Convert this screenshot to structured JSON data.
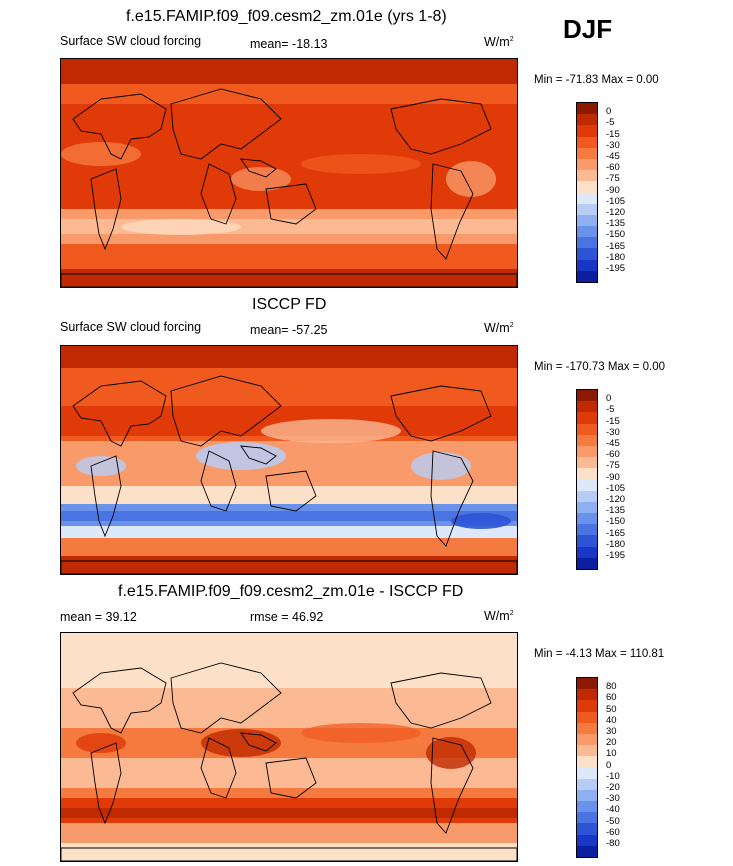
{
  "season": "DJF",
  "panels": [
    {
      "title": "f.e15.FAMIP.f09_f09.cesm2_zm.01e (yrs 1-8)",
      "left_label": "Surface SW cloud forcing",
      "center_label": "mean= -18.13",
      "units": "W/m",
      "units_sup": "2",
      "minmax": "Min = -71.83 Max =   0.00",
      "palette": "cloud"
    },
    {
      "title": "ISCCP FD",
      "left_label": "Surface SW cloud forcing",
      "center_label": "mean= -57.25",
      "units": "W/m",
      "units_sup": "2",
      "minmax": "Min = -170.73 Max =   0.00",
      "palette": "cloud"
    },
    {
      "title": "f.e15.FAMIP.f09_f09.cesm2_zm.01e - ISCCP FD",
      "left_label": "mean =  39.12",
      "center_label": "rmse =  46.92",
      "units": "W/m",
      "units_sup": "2",
      "minmax": "Min =  -4.13 Max = 110.81",
      "palette": "diff"
    }
  ],
  "colorbars": {
    "cloud": {
      "labels": [
        "0",
        "-5",
        "-15",
        "-30",
        "-45",
        "-60",
        "-75",
        "-90",
        "-105",
        "-120",
        "-135",
        "-150",
        "-165",
        "-180",
        "-195"
      ],
      "colors": [
        "#8b1a00",
        "#c02a00",
        "#e03a08",
        "#f05a1e",
        "#f57a40",
        "#f99a6a",
        "#fbb994",
        "#fde0c8",
        "#dde8fb",
        "#b7cdf6",
        "#8fb0f0",
        "#6a92ea",
        "#4a74e2",
        "#2e54d6",
        "#1a36c4",
        "#0c1fa0"
      ]
    },
    "diff": {
      "labels": [
        "80",
        "60",
        "50",
        "40",
        "30",
        "20",
        "10",
        "0",
        "-10",
        "-20",
        "-30",
        "-40",
        "-50",
        "-60",
        "-80"
      ],
      "colors": [
        "#8b1a00",
        "#c02a00",
        "#e03a08",
        "#f05a1e",
        "#f57a40",
        "#f99a6a",
        "#fbb994",
        "#fde0c8",
        "#dde8fb",
        "#b7cdf6",
        "#8fb0f0",
        "#6a92ea",
        "#4a74e2",
        "#2e54d6",
        "#1a36c4",
        "#0c1fa0"
      ]
    }
  }
}
